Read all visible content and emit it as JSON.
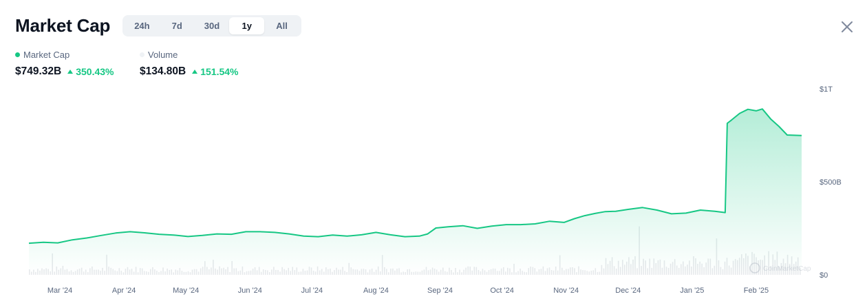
{
  "header": {
    "title": "Market Cap",
    "close_icon": "close-icon"
  },
  "range_tabs": [
    {
      "label": "24h",
      "active": false
    },
    {
      "label": "7d",
      "active": false
    },
    {
      "label": "30d",
      "active": false
    },
    {
      "label": "1y",
      "active": true
    },
    {
      "label": "All",
      "active": false
    }
  ],
  "legend": {
    "market_cap": {
      "label": "Market Cap",
      "color": "#16c784",
      "value": "$749.32B",
      "change": "350.43%"
    },
    "volume": {
      "label": "Volume",
      "color": "#eff2f5",
      "value": "$134.80B",
      "change": "151.54%"
    }
  },
  "watermark": "CoinMarketCap",
  "colors": {
    "line": "#16c784",
    "volume_bar": "#e7e9ec",
    "up": "#16c784"
  },
  "chart_data": {
    "type": "area",
    "title": "Market Cap",
    "xlabel": "",
    "ylabel": "",
    "x_ticks": [
      "Mar '24",
      "Apr '24",
      "May '24",
      "Jun '24",
      "Jul '24",
      "Aug '24",
      "Sep '24",
      "Oct '24",
      "Nov '24",
      "Dec '24",
      "Jan '25",
      "Feb '25"
    ],
    "y_ticks": [
      "$0",
      "$500B",
      "$1T"
    ],
    "ylim": [
      0,
      1000
    ],
    "yunit": "B",
    "grid": false,
    "x_range": [
      "2024-02-15",
      "2025-02-23"
    ],
    "series": [
      {
        "name": "Market Cap",
        "color": "#16c784",
        "x": [
          "2024-02-15",
          "2024-02-22",
          "2024-02-29",
          "2024-03-07",
          "2024-03-14",
          "2024-03-21",
          "2024-03-28",
          "2024-04-04",
          "2024-04-11",
          "2024-04-18",
          "2024-04-25",
          "2024-05-02",
          "2024-05-09",
          "2024-05-16",
          "2024-05-23",
          "2024-05-30",
          "2024-06-06",
          "2024-06-13",
          "2024-06-20",
          "2024-06-27",
          "2024-07-04",
          "2024-07-11",
          "2024-07-18",
          "2024-07-25",
          "2024-08-01",
          "2024-08-08",
          "2024-08-15",
          "2024-08-22",
          "2024-08-26",
          "2024-08-30",
          "2024-09-05",
          "2024-09-12",
          "2024-09-19",
          "2024-09-26",
          "2024-10-03",
          "2024-10-10",
          "2024-10-17",
          "2024-10-24",
          "2024-10-31",
          "2024-11-05",
          "2024-11-10",
          "2024-11-15",
          "2024-11-20",
          "2024-11-25",
          "2024-12-01",
          "2024-12-08",
          "2024-12-15",
          "2024-12-22",
          "2024-12-29",
          "2025-01-05",
          "2025-01-12",
          "2025-01-17",
          "2025-01-18",
          "2025-01-20",
          "2025-01-24",
          "2025-01-28",
          "2025-02-01",
          "2025-02-04",
          "2025-02-08",
          "2025-02-12",
          "2025-02-16",
          "2025-02-23"
        ],
        "values": [
          170,
          175,
          172,
          188,
          198,
          212,
          225,
          232,
          226,
          218,
          214,
          206,
          212,
          220,
          218,
          232,
          232,
          228,
          220,
          208,
          205,
          214,
          208,
          215,
          228,
          215,
          205,
          208,
          220,
          252,
          258,
          264,
          250,
          262,
          270,
          270,
          274,
          288,
          282,
          302,
          318,
          330,
          340,
          342,
          352,
          362,
          348,
          328,
          332,
          348,
          342,
          335,
          815,
          832,
          868,
          890,
          882,
          892,
          838,
          798,
          752,
          749
        ]
      }
    ],
    "volume": {
      "name": "Volume",
      "current": 134.8,
      "change_pct": 151.54
    }
  }
}
